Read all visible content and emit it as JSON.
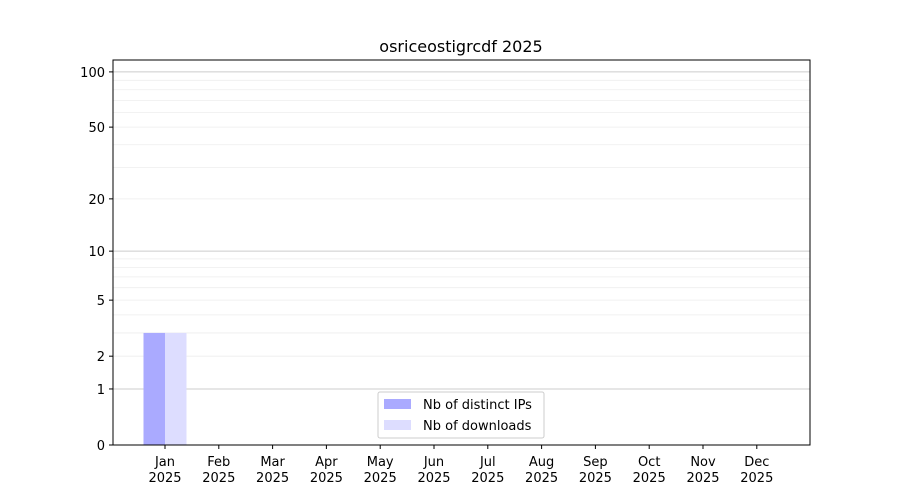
{
  "chart_data": {
    "type": "bar",
    "title": "osriceostigrcdf 2025",
    "xlabel": "",
    "ylabel": "",
    "yscale": "symlog",
    "ylim": [
      0,
      116
    ],
    "categories": [
      "Jan\n2025",
      "Feb\n2025",
      "Mar\n2025",
      "Apr\n2025",
      "May\n2025",
      "Jun\n2025",
      "Jul\n2025",
      "Aug\n2025",
      "Sep\n2025",
      "Oct\n2025",
      "Nov\n2025",
      "Dec\n2025"
    ],
    "yticks": [
      0,
      1,
      2,
      5,
      10,
      20,
      50,
      100
    ],
    "grid": true,
    "legend": "lower-center",
    "series": [
      {
        "name": "Nb of distinct IPs",
        "color": "#aaaaff",
        "values": [
          3,
          0,
          0,
          0,
          0,
          0,
          0,
          0,
          0,
          0,
          0,
          0
        ]
      },
      {
        "name": "Nb of downloads",
        "color": "#ddddff",
        "values": [
          3,
          0,
          0,
          0,
          0,
          0,
          0,
          0,
          0,
          0,
          0,
          0
        ]
      }
    ]
  }
}
